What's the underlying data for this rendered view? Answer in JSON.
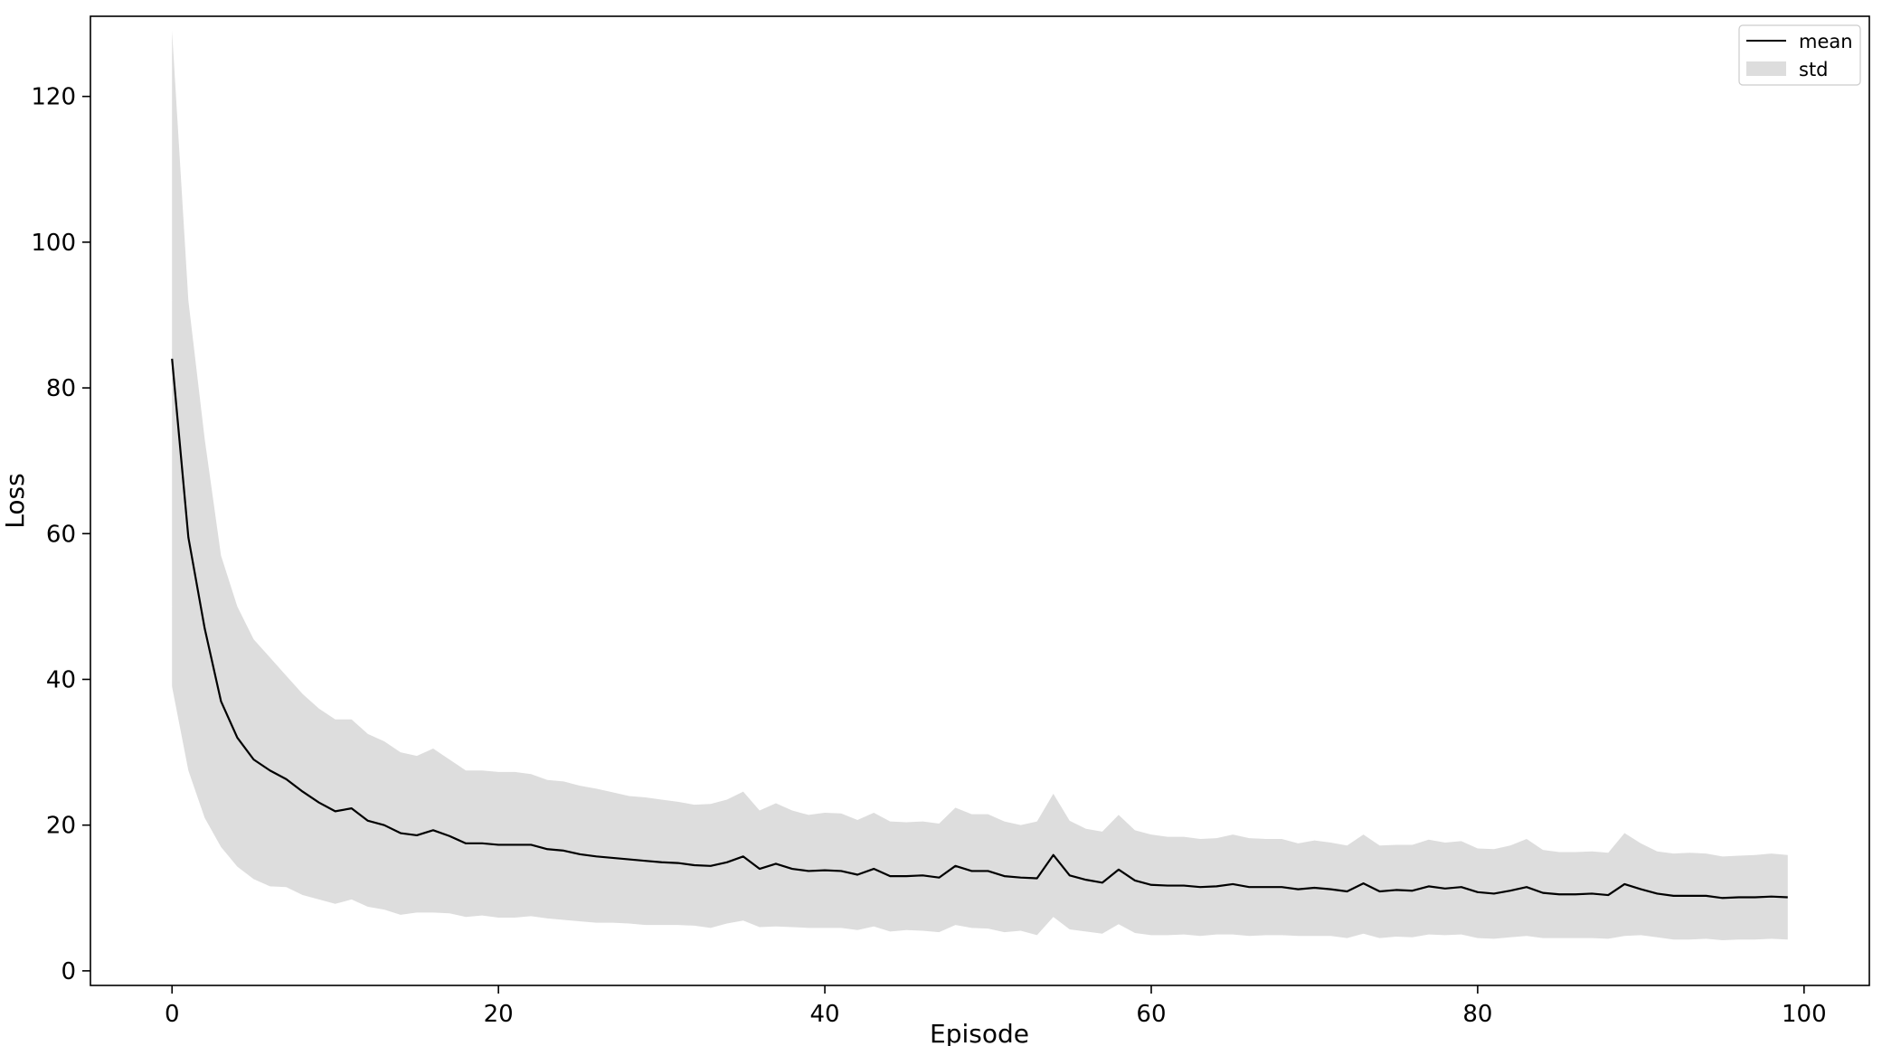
{
  "chart_data": {
    "type": "line",
    "title": "",
    "xlabel": "Episode",
    "ylabel": "Loss",
    "xlim": [
      -5,
      104
    ],
    "ylim": [
      -2,
      131
    ],
    "x_ticks": [
      0,
      20,
      40,
      60,
      80,
      100
    ],
    "y_ticks": [
      0,
      20,
      40,
      60,
      80,
      100,
      120
    ],
    "grid": false,
    "legend_position": "top-right",
    "colors": {
      "mean": "#000000",
      "std": "#dddddd",
      "axes": "#000000"
    },
    "x": [
      0,
      1,
      2,
      3,
      4,
      5,
      6,
      7,
      8,
      9,
      10,
      11,
      12,
      13,
      14,
      15,
      16,
      17,
      18,
      19,
      20,
      21,
      22,
      23,
      24,
      25,
      26,
      27,
      28,
      29,
      30,
      31,
      32,
      33,
      34,
      35,
      36,
      37,
      38,
      39,
      40,
      41,
      42,
      43,
      44,
      45,
      46,
      47,
      48,
      49,
      50,
      51,
      52,
      53,
      54,
      55,
      56,
      57,
      58,
      59,
      60,
      61,
      62,
      63,
      64,
      65,
      66,
      67,
      68,
      69,
      70,
      71,
      72,
      73,
      74,
      75,
      76,
      77,
      78,
      79,
      80,
      81,
      82,
      83,
      84,
      85,
      86,
      87,
      88,
      89,
      90,
      91,
      92,
      93,
      94,
      95,
      96,
      97,
      98,
      99
    ],
    "series": [
      {
        "name": "mean",
        "kind": "line",
        "values": [
          84,
          59.5,
          47,
          37,
          32,
          29,
          27.5,
          26.3,
          24.6,
          23.1,
          21.9,
          22.3,
          20.6,
          20.0,
          18.9,
          18.6,
          19.3,
          18.5,
          17.5,
          17.5,
          17.3,
          17.3,
          17.3,
          16.7,
          16.5,
          16.0,
          15.7,
          15.5,
          15.3,
          15.1,
          14.9,
          14.8,
          14.5,
          14.4,
          14.9,
          15.7,
          14.0,
          14.7,
          14.0,
          13.7,
          13.8,
          13.7,
          13.2,
          14.0,
          13.0,
          13.0,
          13.1,
          12.8,
          14.4,
          13.7,
          13.7,
          13.0,
          12.8,
          12.7,
          15.9,
          13.1,
          12.5,
          12.1,
          13.9,
          12.4,
          11.8,
          11.7,
          11.7,
          11.5,
          11.6,
          11.9,
          11.5,
          11.5,
          11.5,
          11.2,
          11.4,
          11.2,
          10.9,
          12.0,
          10.9,
          11.1,
          11.0,
          11.6,
          11.3,
          11.5,
          10.8,
          10.6,
          11.0,
          11.5,
          10.7,
          10.5,
          10.5,
          10.6,
          10.4,
          11.9,
          11.2,
          10.6,
          10.3,
          10.3,
          10.3,
          10.0,
          10.1,
          10.1,
          10.2,
          10.1
        ]
      },
      {
        "name": "std",
        "kind": "band",
        "upper": [
          129,
          92,
          73,
          57,
          50,
          45.5,
          43,
          40.5,
          38,
          36,
          34.5,
          34.5,
          32.5,
          31.5,
          30,
          29.5,
          30.5,
          29,
          27.5,
          27.5,
          27.3,
          27.3,
          27,
          26.2,
          26,
          25.4,
          25,
          24.5,
          24,
          23.8,
          23.5,
          23.2,
          22.8,
          22.9,
          23.5,
          24.6,
          22.0,
          23.0,
          22.0,
          21.4,
          21.7,
          21.6,
          20.7,
          21.7,
          20.5,
          20.4,
          20.5,
          20.2,
          22.4,
          21.5,
          21.5,
          20.5,
          20.0,
          20.5,
          24.3,
          20.6,
          19.5,
          19.1,
          21.4,
          19.3,
          18.7,
          18.4,
          18.4,
          18.1,
          18.2,
          18.7,
          18.2,
          18.1,
          18.1,
          17.5,
          17.9,
          17.6,
          17.2,
          18.7,
          17.2,
          17.3,
          17.3,
          18.0,
          17.6,
          17.8,
          16.8,
          16.7,
          17.2,
          18.1,
          16.6,
          16.3,
          16.3,
          16.4,
          16.2,
          18.9,
          17.5,
          16.4,
          16.1,
          16.2,
          16.1,
          15.7,
          15.8,
          15.9,
          16.1,
          15.9
        ],
        "lower": [
          39,
          27.5,
          21,
          17,
          14.3,
          12.6,
          11.6,
          11.5,
          10.4,
          9.8,
          9.2,
          9.8,
          8.8,
          8.4,
          7.7,
          8.0,
          8.0,
          7.9,
          7.4,
          7.6,
          7.3,
          7.3,
          7.5,
          7.2,
          7.0,
          6.8,
          6.6,
          6.6,
          6.5,
          6.3,
          6.3,
          6.3,
          6.2,
          5.9,
          6.5,
          6.9,
          6.0,
          6.1,
          6.0,
          5.9,
          5.9,
          5.9,
          5.6,
          6.1,
          5.4,
          5.6,
          5.5,
          5.3,
          6.3,
          5.9,
          5.8,
          5.3,
          5.5,
          4.9,
          7.4,
          5.7,
          5.4,
          5.1,
          6.4,
          5.2,
          4.9,
          4.9,
          5.0,
          4.8,
          5.0,
          5.0,
          4.8,
          4.9,
          4.9,
          4.8,
          4.8,
          4.8,
          4.5,
          5.1,
          4.5,
          4.7,
          4.6,
          5.0,
          4.9,
          5.0,
          4.5,
          4.4,
          4.6,
          4.8,
          4.5,
          4.5,
          4.5,
          4.5,
          4.4,
          4.8,
          4.9,
          4.6,
          4.3,
          4.3,
          4.4,
          4.2,
          4.3,
          4.3,
          4.4,
          4.3
        ]
      }
    ]
  }
}
